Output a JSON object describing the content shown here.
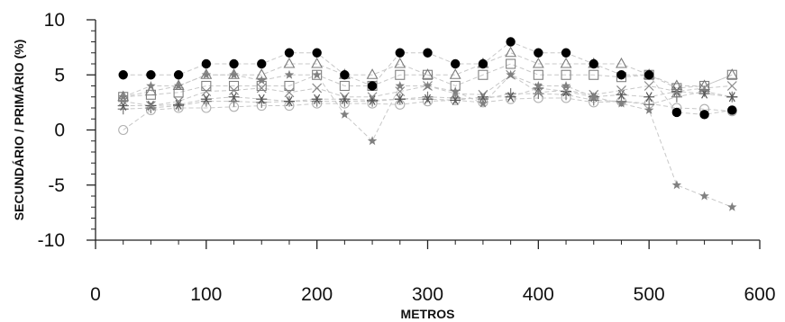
{
  "chart_data": {
    "type": "scatter",
    "title": "",
    "xlabel": "METROS",
    "ylabel": "SECUNDÁRIO / PRIMÁRIO (%)",
    "xlim": [
      0,
      600
    ],
    "ylim": [
      -10,
      10
    ],
    "xticks": [
      0,
      100,
      200,
      300,
      400,
      500,
      600
    ],
    "yticks": [
      -10,
      -5,
      0,
      5,
      10
    ],
    "x_tick_labels": [
      "0",
      "100",
      "200",
      "300",
      "400",
      "500",
      "600"
    ],
    "y_tick_labels": [
      "-10",
      "-5",
      "0",
      "5",
      "10"
    ],
    "x_minor_step": 25,
    "y_minor_step": 1,
    "grid": false,
    "legend": "none",
    "x": [
      25,
      50,
      75,
      100,
      125,
      150,
      175,
      200,
      225,
      250,
      275,
      300,
      325,
      350,
      375,
      400,
      425,
      450,
      475,
      500,
      525,
      550,
      575
    ],
    "series": [
      {
        "marker": "filled-circle",
        "color": "#000000",
        "values": [
          5,
          5,
          5,
          6,
          6,
          6,
          7,
          7,
          5,
          4,
          7,
          7,
          6,
          6,
          8,
          7,
          7,
          6,
          5,
          5,
          1.6,
          1.4,
          1.8
        ]
      },
      {
        "marker": "triangle",
        "color": "#7a7a7a",
        "values": [
          3,
          3.5,
          4,
          5,
          5,
          5,
          6,
          6,
          5,
          5,
          6,
          5,
          5,
          6,
          7,
          6,
          6,
          6,
          6,
          5,
          4,
          4,
          5
        ]
      },
      {
        "marker": "star",
        "color": "#808080",
        "values": [
          3,
          4,
          4,
          5,
          5,
          4.5,
          5,
          5,
          1.4,
          -1,
          4,
          4,
          3.5,
          2.4,
          5,
          4,
          4,
          3,
          2.4,
          1.8,
          -5,
          -6,
          -7
        ]
      },
      {
        "marker": "square",
        "color": "#808080",
        "values": [
          3,
          3.2,
          3.4,
          4,
          4,
          4,
          4,
          5,
          4,
          4,
          5,
          5,
          4,
          5,
          6,
          5,
          5,
          5,
          4.8,
          5,
          3.8,
          4,
          5
        ]
      },
      {
        "marker": "x",
        "color": "#888888",
        "values": [
          2.6,
          2.2,
          2.6,
          3.5,
          3.6,
          3.8,
          3.4,
          3.8,
          3,
          3,
          3.5,
          4,
          3.3,
          3.2,
          5,
          3.4,
          3.6,
          3.2,
          3.6,
          4,
          3.5,
          3.8,
          4
        ]
      },
      {
        "marker": "asterisk",
        "color": "#555555",
        "values": [
          2.2,
          2.2,
          2.3,
          2.8,
          3,
          2.8,
          2.6,
          2.8,
          2.8,
          2.7,
          2.8,
          2.8,
          2.7,
          3,
          3,
          3.8,
          3.5,
          3,
          3.2,
          3,
          3.5,
          3.3,
          3
        ]
      },
      {
        "marker": "plus",
        "color": "#777777",
        "values": [
          1.9,
          2,
          2.2,
          2.6,
          2.6,
          2.5,
          2.6,
          2.6,
          2.6,
          2.6,
          2.8,
          3,
          2.9,
          2.8,
          3.3,
          3.3,
          3.2,
          2.7,
          2.6,
          2.3,
          3,
          3.5,
          3
        ]
      },
      {
        "marker": "open-circle",
        "color": "#b0b0b0",
        "values": [
          0,
          1.8,
          2,
          2,
          2.1,
          2.2,
          2.2,
          2.4,
          2.4,
          2.4,
          2.3,
          2.6,
          2.7,
          2.5,
          2.8,
          2.9,
          2.9,
          2.5,
          2.6,
          2.4,
          2,
          1.9,
          1.7
        ]
      }
    ]
  }
}
